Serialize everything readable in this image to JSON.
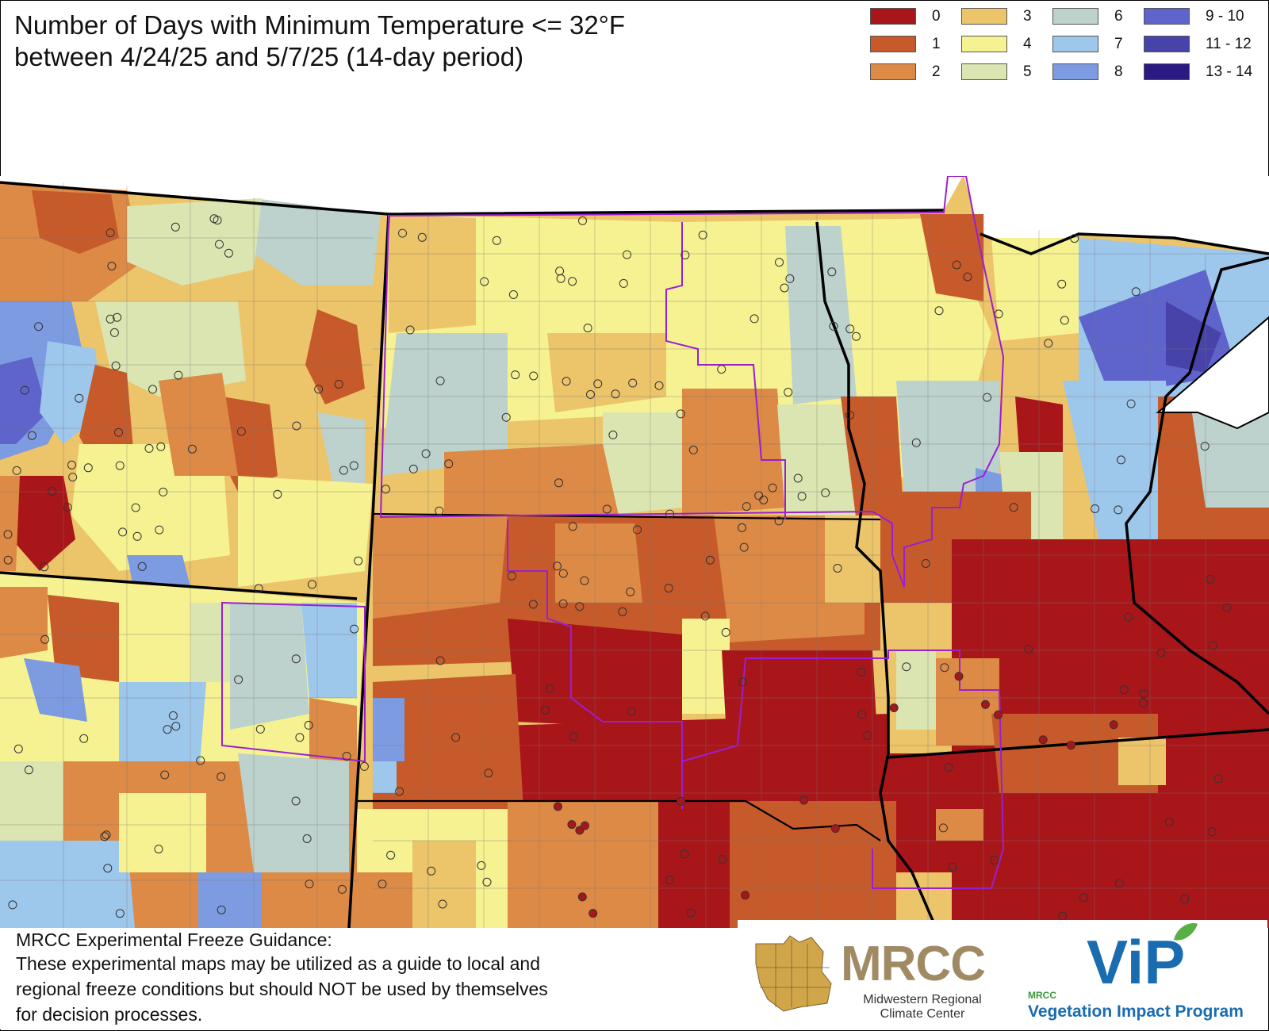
{
  "title": {
    "line1": "Number of Days with Minimum Temperature <= 32°F",
    "line2": "between 4/24/25 and 5/7/25 (14-day period)"
  },
  "legend": [
    {
      "label": "0",
      "color": "#a8161a"
    },
    {
      "label": "1",
      "color": "#c75a2a"
    },
    {
      "label": "2",
      "color": "#dc8a45"
    },
    {
      "label": "3",
      "color": "#ecc46a"
    },
    {
      "label": "4",
      "color": "#f6f291"
    },
    {
      "label": "5",
      "color": "#dbe5b1"
    },
    {
      "label": "6",
      "color": "#bdd2cd"
    },
    {
      "label": "7",
      "color": "#9ec7ec"
    },
    {
      "label": "8",
      "color": "#7d9be0"
    },
    {
      "label": "9 - 10",
      "color": "#5f64cc"
    },
    {
      "label": "11 - 12",
      "color": "#4743a8"
    },
    {
      "label": "13 - 14",
      "color": "#2a1a82"
    }
  ],
  "disclaimer": {
    "heading": "MRCC Experimental Freeze Guidance:",
    "lines": [
      "These experimental maps may be utilized as a guide to local and",
      "regional freeze conditions but should NOT be used by themselves",
      "for decision processes."
    ]
  },
  "logos": {
    "mrcc": "MRCC",
    "mrcc_sub_1": "Midwestern Regional",
    "mrcc_sub_2": "Climate Center",
    "vip": "ViP",
    "vip_small": "MRCC",
    "vip_sub": "Vegetation Impact Program"
  }
}
